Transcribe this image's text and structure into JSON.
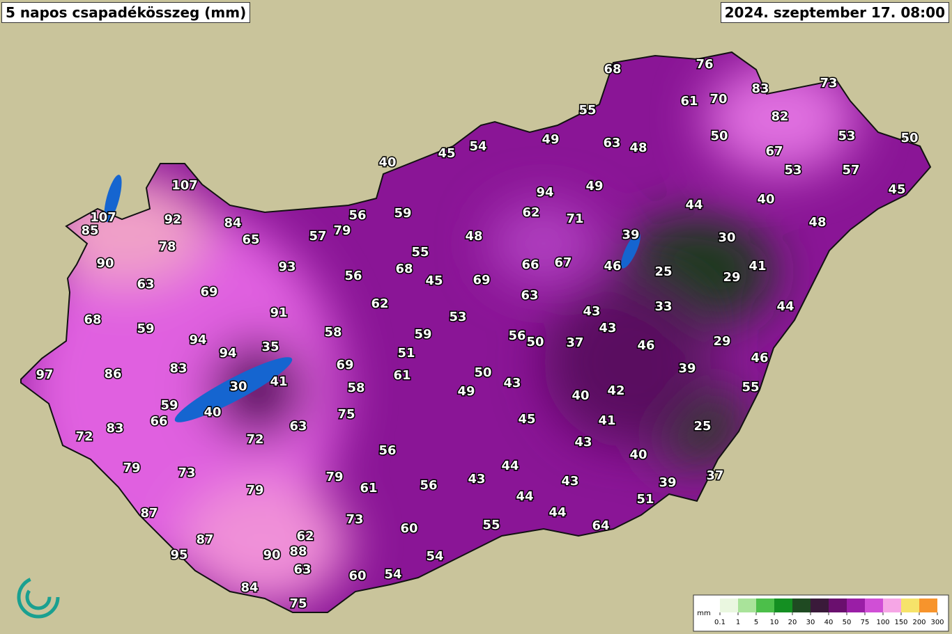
{
  "title": "5 napos csapadékösszeg (mm)",
  "date": "2024. szeptember 17. 08:00",
  "stations": [
    68,
    76,
    83,
    73,
    55,
    61,
    70,
    82,
    49,
    63,
    48,
    50,
    53,
    50,
    45,
    54,
    40,
    67,
    53,
    57,
    94,
    49,
    45,
    107,
    40,
    44,
    107,
    92,
    84,
    56,
    59,
    62,
    71,
    48,
    85,
    65,
    57,
    79,
    48,
    39,
    30,
    78,
    55,
    66,
    67,
    46,
    25,
    41,
    90,
    93,
    56,
    68,
    45,
    69,
    29,
    63,
    69,
    63,
    62,
    91,
    43,
    33,
    44,
    68,
    59,
    53,
    43,
    58,
    59,
    56,
    50,
    37,
    46,
    29,
    94,
    94,
    35,
    51,
    46,
    83,
    69,
    39,
    97,
    86,
    30,
    41,
    61,
    50,
    43,
    58,
    49,
    42,
    55,
    40,
    59,
    40,
    66,
    75,
    45,
    41,
    25,
    63,
    72,
    83,
    72,
    43,
    56,
    40,
    44,
    79,
    73,
    79,
    43,
    43,
    39,
    37,
    61,
    56,
    79,
    44,
    51,
    87,
    73,
    44,
    55,
    64,
    60,
    62,
    87,
    88,
    90,
    95,
    54,
    63,
    60,
    54,
    84,
    75
  ],
  "legend": {
    "unit": "mm",
    "ticks": [
      0.1,
      1,
      5,
      10,
      20,
      30,
      40,
      50,
      75,
      100,
      150,
      200,
      300
    ],
    "colors": [
      "#eaf7e0",
      "#a9e39a",
      "#4cbf4a",
      "#148f22",
      "#1f4a22",
      "#3a1a3a",
      "#6a0f6e",
      "#9a1ea6",
      "#d04fd6",
      "#f6a6e6",
      "#f6e36a",
      "#f7942c"
    ]
  }
}
